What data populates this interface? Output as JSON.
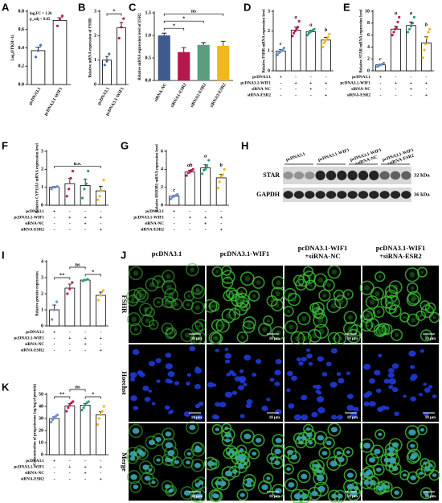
{
  "chart_data": [
    {
      "type": "bar",
      "panel": "A",
      "ylabel": "Log₂(FPKM+1)",
      "categories": [
        "pcDNA3.1",
        "pcDNA3.1-WIF1"
      ],
      "values": [
        0.37,
        0.7
      ],
      "errors": [
        0.04,
        0.03
      ],
      "points": [
        [
          0.3,
          0.37,
          0.43
        ],
        [
          0.64,
          0.71,
          0.75
        ]
      ],
      "colors": [
        "#4a6fb5",
        "#c2185b"
      ],
      "filled": false,
      "ylim": [
        0,
        0.8
      ],
      "yticks": [
        {
          "value": 0,
          "label": "0.0"
        },
        {
          "value": 0.2,
          "label": "0.2"
        },
        {
          "value": 0.4,
          "label": "0.4"
        },
        {
          "value": 0.6,
          "label": "0.6"
        },
        {
          "value": 0.8,
          "label": "0.8"
        }
      ],
      "notes": [
        "log₂FC = 1.26",
        "p_adj < 0.05"
      ]
    },
    {
      "type": "bar",
      "panel": "B",
      "ylabel": "Relative mRNA expression of FSHR",
      "categories": [
        "pcDNA3.1",
        "pcDNA3.1-WIF1"
      ],
      "values": [
        1.0,
        2.32
      ],
      "errors": [
        0.15,
        0.22
      ],
      "points": [
        [
          0.8,
          0.95,
          1.25
        ],
        [
          1.9,
          2.35,
          2.7
        ]
      ],
      "colors": [
        "#4a6fb5",
        "#c2185b"
      ],
      "filled": false,
      "ylim": [
        0,
        3
      ],
      "yticks": [
        0,
        1,
        2,
        3
      ],
      "brackets": [
        {
          "from": 0,
          "to": 1,
          "text": "*"
        }
      ]
    },
    {
      "type": "bar",
      "panel": "C",
      "ylabel": "Relative mRNA expression level of ESR2",
      "categories": [
        "siRNA-NC",
        "siRNA1-ESR2",
        "siRNA2-ESR2",
        "siRNA3-ESR2"
      ],
      "values": [
        1.0,
        0.63,
        0.79,
        0.77
      ],
      "errors": [
        0.05,
        0.1,
        0.05,
        0.1
      ],
      "colors": [
        "#3f5a8f",
        "#b5174f",
        "#5a9e7e",
        "#f0b81c"
      ],
      "filled": true,
      "ylim": [
        0,
        1.5
      ],
      "yticks": [
        {
          "value": 0,
          "label": "0.0"
        },
        {
          "value": 0.5,
          "label": "0.5"
        },
        {
          "value": 1,
          "label": "1.0"
        },
        {
          "value": 1.5,
          "label": "1.5"
        }
      ],
      "brackets": [
        {
          "from": 0,
          "to": 1,
          "text": "*"
        },
        {
          "from": 0,
          "to": 2,
          "text": "*"
        },
        {
          "from": 0,
          "to": 3,
          "text": "ns"
        }
      ]
    },
    {
      "type": "bar",
      "panel": "D",
      "ylabel": "Relative FSHR mRNA expression level",
      "categories": [
        null,
        null,
        null,
        null
      ],
      "values": [
        1.0,
        2.05,
        1.97,
        1.55
      ],
      "errors": [
        0.07,
        0.15,
        0.08,
        0.13
      ],
      "points": [
        [
          0.8,
          0.9,
          0.95,
          1.0,
          1.05,
          1.15
        ],
        [
          1.75,
          1.9,
          2.0,
          2.1,
          2.2,
          2.5
        ],
        [
          1.8,
          1.9,
          1.95,
          2.0,
          2.05,
          2.1
        ],
        [
          1.2,
          1.4,
          1.5,
          1.6,
          1.7,
          1.85
        ]
      ],
      "colors": [
        "#6b8fd0",
        "#c2185b",
        "#2e9c84",
        "#f0b81c"
      ],
      "filled": false,
      "ylim": [
        0,
        3
      ],
      "yticks": [
        0,
        1,
        2,
        3
      ],
      "letters": [
        "c",
        "a",
        "a",
        "b"
      ],
      "treatments": [
        {
          "name": "pcDNA3.1",
          "signs": [
            "+",
            "-",
            "-",
            "-"
          ]
        },
        {
          "name": "pcDNA3.1-WIF1",
          "signs": [
            "-",
            "+",
            "+",
            "+"
          ]
        },
        {
          "name": "siRNA-NC",
          "signs": [
            "-",
            "-",
            "+",
            "-"
          ]
        },
        {
          "name": "siRNA-ESR2",
          "signs": [
            "-",
            "-",
            "-",
            "+"
          ]
        }
      ]
    },
    {
      "type": "bar",
      "panel": "E",
      "ylabel": "Relative STAR mRNA expression level",
      "categories": [
        null,
        null,
        null,
        null
      ],
      "values": [
        1.0,
        7.0,
        7.6,
        4.7
      ],
      "errors": [
        0.15,
        0.5,
        0.6,
        1.0
      ],
      "points": [
        [
          0.7,
          0.9,
          1.0,
          1.1,
          1.3
        ],
        [
          6.0,
          6.5,
          7.0,
          7.2,
          8.2,
          9.0
        ],
        [
          6.5,
          7.0,
          7.5,
          8.0,
          9.0
        ],
        [
          2.2,
          3.5,
          4.5,
          5.5,
          6.5,
          7.0
        ]
      ],
      "colors": [
        "#6b8fd0",
        "#c2185b",
        "#2e9c84",
        "#f0b81c"
      ],
      "filled": false,
      "ylim": [
        0,
        10
      ],
      "yticks": [
        0,
        2,
        4,
        6,
        8,
        10
      ],
      "letters": [
        "c",
        "a",
        "a",
        "b"
      ],
      "treatments": [
        {
          "name": "pcDNA3.1",
          "signs": [
            "+",
            "-",
            "-",
            "-"
          ]
        },
        {
          "name": "pcDNA3.1-WIF1",
          "signs": [
            "-",
            "+",
            "+",
            "+"
          ]
        },
        {
          "name": "siRNA-NC",
          "signs": [
            "-",
            "-",
            "+",
            "-"
          ]
        },
        {
          "name": "siRNA-ESR2",
          "signs": [
            "-",
            "-",
            "-",
            "+"
          ]
        }
      ]
    },
    {
      "type": "bar",
      "panel": "F",
      "ylabel": "Relative CYP11A1 mRNA expression level",
      "categories": [
        null,
        null,
        null,
        null
      ],
      "values": [
        1.0,
        1.2,
        1.1,
        0.8
      ],
      "errors": [
        0.05,
        0.3,
        0.35,
        0.25
      ],
      "points": [
        [
          0.9,
          1.0,
          1.0,
          1.05
        ],
        [
          0.5,
          0.9,
          1.5,
          1.9
        ],
        [
          0.4,
          0.9,
          1.2,
          1.9
        ],
        [
          0.3,
          0.5,
          0.8,
          1.4
        ]
      ],
      "colors": [
        "#6b8fd0",
        "#c2185b",
        "#2e9c84",
        "#f0b81c"
      ],
      "filled": false,
      "ylim": [
        0,
        3
      ],
      "yticks": [
        0,
        1,
        2,
        3
      ],
      "brackets": [
        {
          "from": 0,
          "to": 3,
          "text": "n.s."
        }
      ],
      "treatments": [
        {
          "name": "pcDNA3.1",
          "signs": [
            "+",
            "-",
            "-",
            "-"
          ]
        },
        {
          "name": "pcDNA3.1-WIF1",
          "signs": [
            "-",
            "+",
            "+",
            "+"
          ]
        },
        {
          "name": "siRNA-NC",
          "signs": [
            "-",
            "-",
            "+",
            "-"
          ]
        },
        {
          "name": "siRNA-ESR2",
          "signs": [
            "-",
            "-",
            "-",
            "+"
          ]
        }
      ]
    },
    {
      "type": "bar",
      "panel": "G",
      "ylabel": "Relative HSD3B1 mRNA expression level",
      "categories": [
        null,
        null,
        null,
        null
      ],
      "values": [
        1.0,
        3.7,
        4.15,
        3.05
      ],
      "errors": [
        0.1,
        0.2,
        0.35,
        0.4
      ],
      "points": [
        [
          0.7,
          0.9,
          1.0,
          1.1,
          1.2
        ],
        [
          3.3,
          3.6,
          3.7,
          3.9,
          4.0
        ],
        [
          3.5,
          3.9,
          4.0,
          4.4,
          5.0
        ],
        [
          1.9,
          2.6,
          3.2,
          3.4,
          4.0
        ]
      ],
      "colors": [
        "#6b8fd0",
        "#c2185b",
        "#2e9c84",
        "#f0b81c"
      ],
      "filled": false,
      "ylim": [
        0,
        6
      ],
      "yticks": [
        0,
        2,
        4,
        6
      ],
      "letters": [
        "c",
        "ab",
        "a",
        "b"
      ],
      "treatments": [
        {
          "name": "pcDNA3.1",
          "signs": [
            "+",
            "-",
            "-",
            "-"
          ]
        },
        {
          "name": "pcDNA3.1-WIF1",
          "signs": [
            "-",
            "+",
            "+",
            "+"
          ]
        },
        {
          "name": "siRNA-NC",
          "signs": [
            "-",
            "-",
            "+",
            "-"
          ]
        },
        {
          "name": "siRNA-ESR2",
          "signs": [
            "-",
            "-",
            "-",
            "+"
          ]
        }
      ]
    },
    {
      "type": "bar",
      "panel": "I",
      "ylabel": "Relative protein expression",
      "categories": [
        null,
        null,
        null,
        null
      ],
      "values": [
        1.0,
        2.35,
        2.85,
        1.9
      ],
      "errors": [
        0.3,
        0.25,
        0.05,
        0.2
      ],
      "points": [
        [
          0.4,
          1.0,
          1.5
        ],
        [
          2.0,
          2.3,
          2.7
        ],
        [
          2.8,
          2.85,
          2.9
        ],
        [
          1.6,
          1.9,
          2.2
        ]
      ],
      "colors": [
        "#6b8fd0",
        "#c2185b",
        "#2e9c84",
        "#f0b81c"
      ],
      "filled": false,
      "ylim": [
        0,
        4
      ],
      "yticks": [
        0,
        1,
        2,
        3,
        4
      ],
      "brackets": [
        {
          "from": 0,
          "to": 1,
          "text": "**"
        },
        {
          "from": 2,
          "to": 3,
          "text": "*"
        },
        {
          "from": 1,
          "to": 2,
          "text": "ns"
        }
      ],
      "treatments": [
        {
          "name": "pcDNA3.1",
          "signs": [
            "+",
            "-",
            "-",
            "-"
          ]
        },
        {
          "name": "pcDNA3.1-WIF1",
          "signs": [
            "-",
            "+",
            "+",
            "+"
          ]
        },
        {
          "name": "siRNA-NC",
          "signs": [
            "-",
            "-",
            "+",
            "-"
          ]
        },
        {
          "name": "siRNA-ESR2",
          "signs": [
            "-",
            "-",
            "-",
            "+"
          ]
        }
      ]
    },
    {
      "type": "bar",
      "panel": "K",
      "ylabel": "Concentration of progesterone (ng/mg of protein)",
      "categories": [
        null,
        null,
        null,
        null
      ],
      "values": [
        30,
        40.5,
        41,
        33
      ],
      "errors": [
        1.5,
        2,
        1.5,
        2.5
      ],
      "points": [
        [
          27,
          29,
          31,
          32,
          33
        ],
        [
          36,
          39,
          41,
          43,
          44
        ],
        [
          37,
          39,
          41,
          43,
          44
        ],
        [
          25,
          30,
          33,
          36,
          40
        ]
      ],
      "colors": [
        "#6b8fd0",
        "#c2185b",
        "#2e9c84",
        "#f0b81c"
      ],
      "filled": false,
      "ylim": [
        0,
        50
      ],
      "yticks": [
        0,
        10,
        20,
        30,
        40,
        50
      ],
      "brackets": [
        {
          "from": 0,
          "to": 1,
          "text": "**"
        },
        {
          "from": 2,
          "to": 3,
          "text": "*"
        },
        {
          "from": 1,
          "to": 2,
          "text": "ns"
        }
      ],
      "treatments": [
        {
          "name": "pcDNA3.1",
          "signs": [
            "+",
            "-",
            "-",
            "-"
          ]
        },
        {
          "name": "pcDNA3.1-WIF1",
          "signs": [
            "-",
            "+",
            "+",
            "+"
          ]
        },
        {
          "name": "siRNA-NC",
          "signs": [
            "-",
            "-",
            "+",
            "-"
          ]
        },
        {
          "name": "siRNA-ESR2",
          "signs": [
            "-",
            "-",
            "-",
            "+"
          ]
        }
      ]
    }
  ],
  "blot": {
    "panel": "H",
    "groups": [
      [
        "pcDNA3.1"
      ],
      [
        "pcDNA3.1-WIF1"
      ],
      [
        "pcDNA3.1-WIF1",
        "+siRNA-NC"
      ],
      [
        "pcDNA3.1-WIF1",
        "+siRNA-ESR2"
      ]
    ],
    "proteins": [
      "STAR",
      "GAPDH"
    ],
    "sizes": [
      "32 kDa",
      "36 kDa"
    ]
  },
  "micrographs": {
    "panel": "J",
    "columns": [
      [
        "pcDNA3.1"
      ],
      [
        "pcDNA3.1-WIF1"
      ],
      [
        "pcDNA3.1-WIF1",
        "+siRNA-NC"
      ],
      [
        "pcDNA3.1-WIF1",
        "+siRNA-ESR2"
      ]
    ],
    "rows": [
      "FSHR",
      "Hoechst",
      "Merge"
    ],
    "scale_bar": "10 μm"
  }
}
